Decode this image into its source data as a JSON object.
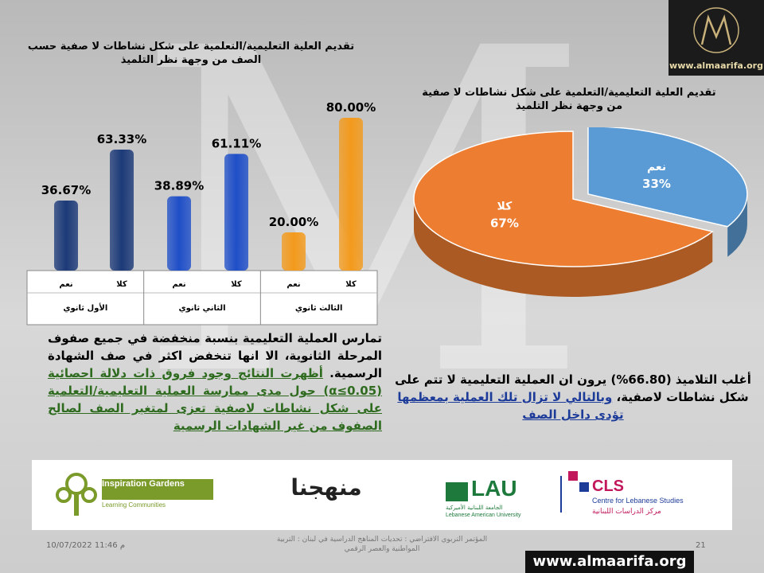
{
  "slide": {
    "bar_title": "تقديم العلية التعليمية/التعلمية على شكل نشاطات لا صفية حسب الصف من وجهة نظر التلميذ",
    "pie_title": "تقديم العلية التعليمية/التعلمية على شكل نشاطات لا صفية من وجهة نظر التلميذ",
    "logo_text": "www.almaarifa.org",
    "left_paragraph_black": "تمارس العملية التعليمية بنسبة منخفضة في جميع صفوف المرحلة الثانوية، الا انها تنخفض اكثر في صف الشهادة الرسمية.",
    "left_paragraph_green": "أظهرت النتائج وجود فروق ذات دلالة احصائية (0.05≥α) حول مدى ممارسة العملية التعليمية/التعلمية على شكل نشاطات لاصفية تعزى لمتغير الصف لصالح الصفوف من غير الشهادات الرسمية",
    "right_paragraph_black": "أغلب التلاميذ (66.80%) يرون ان العملية التعليمية لا تتم على شكل نشاطات لاصفية،",
    "right_paragraph_blue": "وبالتالي لا تزال تلك العملية بمعظمها تؤدى داخل الصف",
    "logos": {
      "inspiration": "Inspiration Gardens",
      "inspiration_sub": "Learning Communities",
      "manhajuna": "منهجنا",
      "lau": "LAU",
      "lau_ar": "الجامعة اللبنانية الأميركية",
      "lau_sub": "Lebanese American University",
      "cls": "CLS",
      "cls_en": "Centre for Lebanese Studies",
      "cls_ar": "مركز الدراسات اللبنانية"
    },
    "footer_date": "10/07/2022 11:46 م",
    "footer_conf": "المؤتمر التربوي الافتراضي : تحديات المناهج الدراسية في لبنان : التربية المواطنية والعصر الرقمي",
    "footer_num": "21",
    "footer_url": "www.almaarifa.org"
  },
  "chart_data": [
    {
      "type": "bar",
      "title": "تقديم العلية التعليمية/التعلمية على شكل نشاطات لا صفية حسب الصف من وجهة نظر التلميذ",
      "groups": [
        "الأول ثانوي",
        "الثاني ثانوي",
        "الثالث ثانوي"
      ],
      "categories": [
        "نعم",
        "كلا"
      ],
      "values": [
        [
          36.67,
          63.33
        ],
        [
          38.89,
          61.11
        ],
        [
          20.0,
          80.0
        ]
      ],
      "labels": [
        "36.67%",
        "63.33%",
        "38.89%",
        "61.11%",
        "20.00%",
        "80.00%"
      ],
      "colors": [
        "#1c3a78",
        "#1c3a78",
        "#1f4fc8",
        "#1f4fc8",
        "#f39a1c",
        "#f39a1c"
      ],
      "ylim": [
        0,
        100
      ]
    },
    {
      "type": "pie",
      "title": "تقديم العلية التعليمية/التعلمية على شكل نشاطات لا صفية من وجهة نظر التلميذ",
      "slices": [
        {
          "label": "نعم",
          "value": 33,
          "text": "33%",
          "color": "#5b9bd5"
        },
        {
          "label": "كلا",
          "value": 67,
          "text": "67%",
          "color": "#ed7d31"
        }
      ]
    }
  ]
}
